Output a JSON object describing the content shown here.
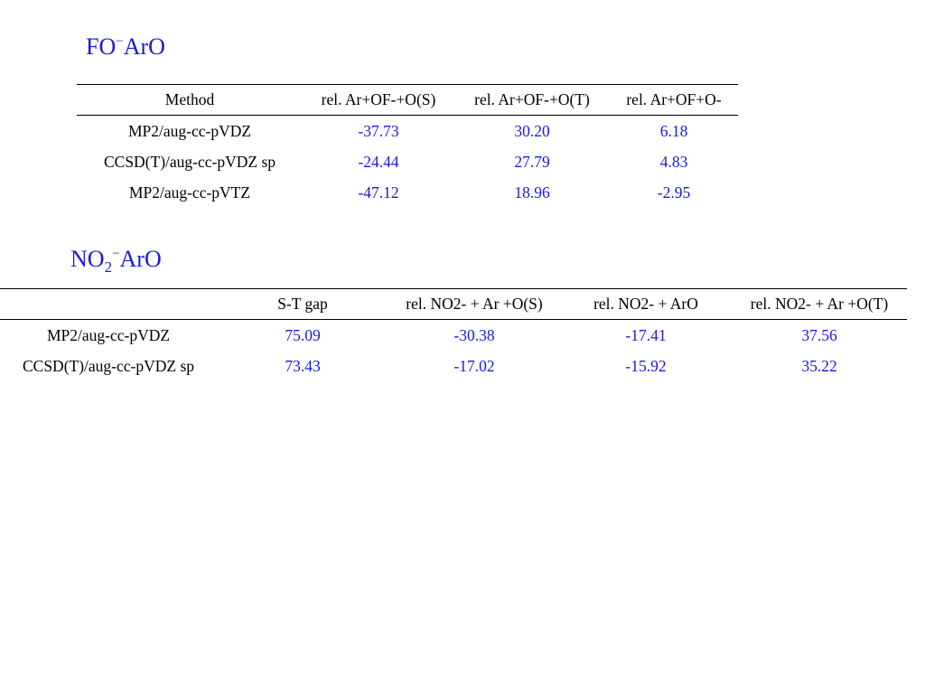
{
  "sections": [
    {
      "title_main": "FO",
      "title_sub": "",
      "title_sup": "−",
      "title_rest": "ArO",
      "headers": [
        "Method",
        "rel. Ar+OF-+O(S)",
        "rel. Ar+OF-+O(T)",
        "rel. Ar+OF+O-"
      ],
      "rows": [
        [
          "MP2/aug-cc-pVDZ",
          "-37.73",
          "30.20",
          "6.18"
        ],
        [
          "CCSD(T)/aug-cc-pVDZ sp",
          "-24.44",
          "27.79",
          "4.83"
        ],
        [
          "MP2/aug-cc-pVTZ",
          "-47.12",
          "18.96",
          "-2.95"
        ]
      ]
    },
    {
      "title_main": "NO",
      "title_sub": "2",
      "title_sup": "−",
      "title_rest": "ArO",
      "headers": [
        "",
        "S-T gap",
        "rel. NO2- + Ar +O(S)",
        "rel. NO2- + ArO",
        "rel. NO2- + Ar +O(T)"
      ],
      "rows": [
        [
          "MP2/aug-cc-pVDZ",
          "75.09",
          "-30.38",
          "-17.41",
          "37.56"
        ],
        [
          "CCSD(T)/aug-cc-pVDZ sp",
          "73.43",
          "-17.02",
          "-15.92",
          "35.22"
        ]
      ]
    }
  ],
  "colors": {
    "accent": "#1a1adc",
    "text": "#000000",
    "background": "#ffffff"
  }
}
